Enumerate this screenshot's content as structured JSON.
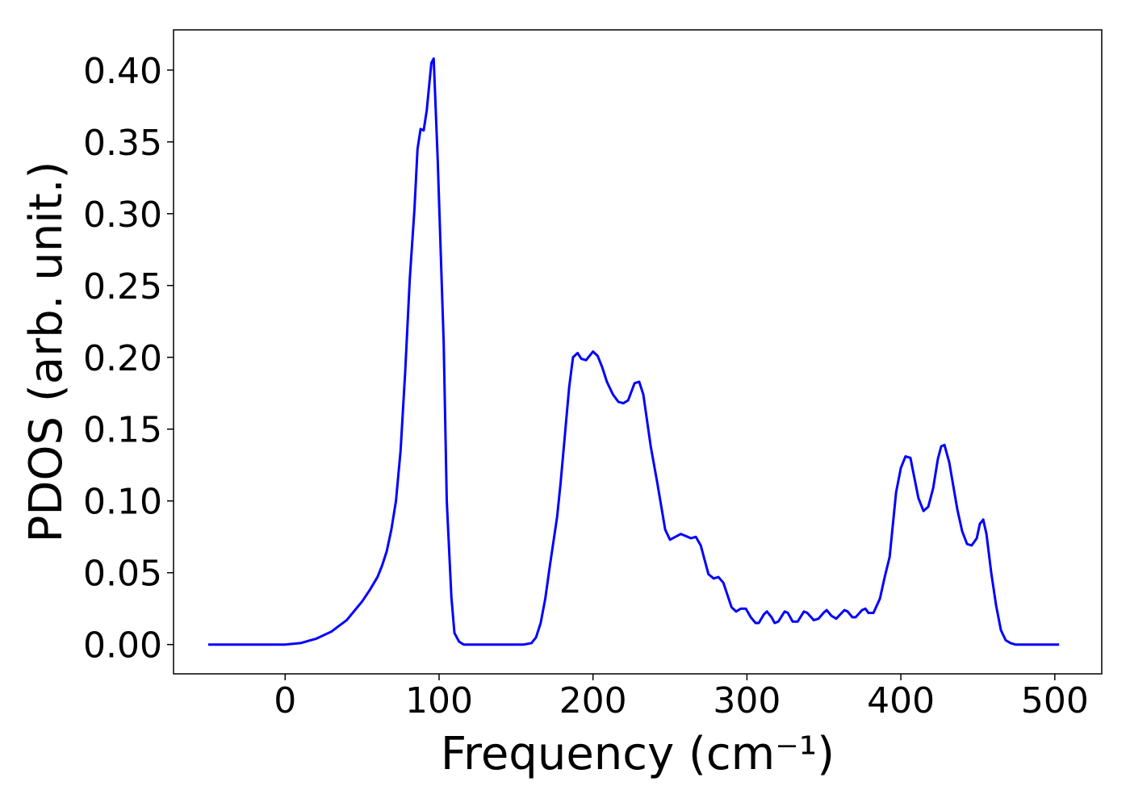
{
  "chart_data": {
    "type": "line",
    "xlabel": "Frequency (cm⁻¹)",
    "ylabel": "PDOS (arb. unit.)",
    "color": "#0000ff",
    "xlim": [
      -72.5,
      530.5
    ],
    "ylim": [
      -0.0204,
      0.428
    ],
    "xticks": [
      0,
      100,
      200,
      300,
      400,
      500
    ],
    "yticks": [
      {
        "value": 0,
        "label": "0.00"
      },
      {
        "value": 0.05,
        "label": "0.05"
      },
      {
        "value": 0.1,
        "label": "0.10"
      },
      {
        "value": 0.15,
        "label": "0.15"
      },
      {
        "value": 0.2,
        "label": "0.20"
      },
      {
        "value": 0.25,
        "label": "0.25"
      },
      {
        "value": 0.3,
        "label": "0.30"
      },
      {
        "value": 0.35,
        "label": "0.35"
      },
      {
        "value": 0.4,
        "label": "0.40"
      }
    ],
    "x": [
      -50,
      0,
      10,
      20,
      30,
      40,
      50,
      55,
      60,
      63,
      66,
      69,
      72,
      75,
      78,
      81,
      84,
      86,
      88,
      90,
      92,
      95,
      96.5,
      99.1,
      103,
      105,
      108,
      110,
      113,
      116,
      155,
      160,
      163,
      166,
      169,
      172,
      176.7,
      179,
      184.5,
      187,
      190,
      192.4,
      195.5,
      200,
      203,
      206,
      209,
      213,
      216.5,
      219.7,
      222.8,
      227,
      230,
      232.7,
      237.5,
      241.7,
      246.9,
      250,
      257,
      263.7,
      266.8,
      270,
      275,
      278.4,
      281.5,
      284.7,
      290,
      293,
      296,
      299.3,
      302.5,
      305.6,
      307.7,
      311,
      313,
      316,
      318,
      320.4,
      324.5,
      326.6,
      329.7,
      333,
      337,
      339.2,
      343.4,
      346.5,
      349.7,
      351.8,
      354.9,
      358,
      363.3,
      365.4,
      368.5,
      370.6,
      374.8,
      376.9,
      379,
      382.2,
      386.4,
      389.5,
      392.7,
      396.9,
      400,
      403,
      406.2,
      411.4,
      414.7,
      417.8,
      421,
      424,
      426.2,
      428.3,
      431.4,
      436.7,
      439.8,
      443,
      446,
      449.3,
      451.3,
      453.5,
      455.6,
      458.7,
      461.9,
      465,
      468.1,
      471.3,
      474.4,
      502.8
    ],
    "values": [
      0,
      0,
      0.001,
      0.004,
      0.009,
      0.017,
      0.03,
      0.038,
      0.047,
      0.055,
      0.065,
      0.08,
      0.1,
      0.135,
      0.19,
      0.255,
      0.303,
      0.345,
      0.359,
      0.358,
      0.372,
      0.405,
      0.408,
      0.338,
      0.21,
      0.1,
      0.033,
      0.008,
      0.002,
      0,
      0,
      0.001,
      0.005,
      0.015,
      0.032,
      0.055,
      0.089,
      0.113,
      0.179,
      0.2,
      0.203,
      0.199,
      0.198,
      0.204,
      0.201,
      0.193,
      0.183,
      0.174,
      0.169,
      0.168,
      0.17,
      0.182,
      0.183,
      0.174,
      0.138,
      0.113,
      0.08,
      0.073,
      0.077,
      0.074,
      0.075,
      0.069,
      0.049,
      0.046,
      0.047,
      0.043,
      0.026,
      0.023,
      0.025,
      0.025,
      0.019,
      0.015,
      0.015,
      0.021,
      0.023,
      0.019,
      0.015,
      0.016,
      0.023,
      0.022,
      0.016,
      0.016,
      0.023,
      0.022,
      0.017,
      0.018,
      0.022,
      0.024,
      0.02,
      0.018,
      0.024,
      0.023,
      0.019,
      0.019,
      0.024,
      0.025,
      0.022,
      0.022,
      0.032,
      0.047,
      0.061,
      0.106,
      0.123,
      0.131,
      0.13,
      0.102,
      0.093,
      0.096,
      0.109,
      0.129,
      0.138,
      0.139,
      0.127,
      0.094,
      0.079,
      0.07,
      0.069,
      0.074,
      0.084,
      0.087,
      0.077,
      0.05,
      0.027,
      0.01,
      0.003,
      0.001,
      0,
      0
    ]
  }
}
